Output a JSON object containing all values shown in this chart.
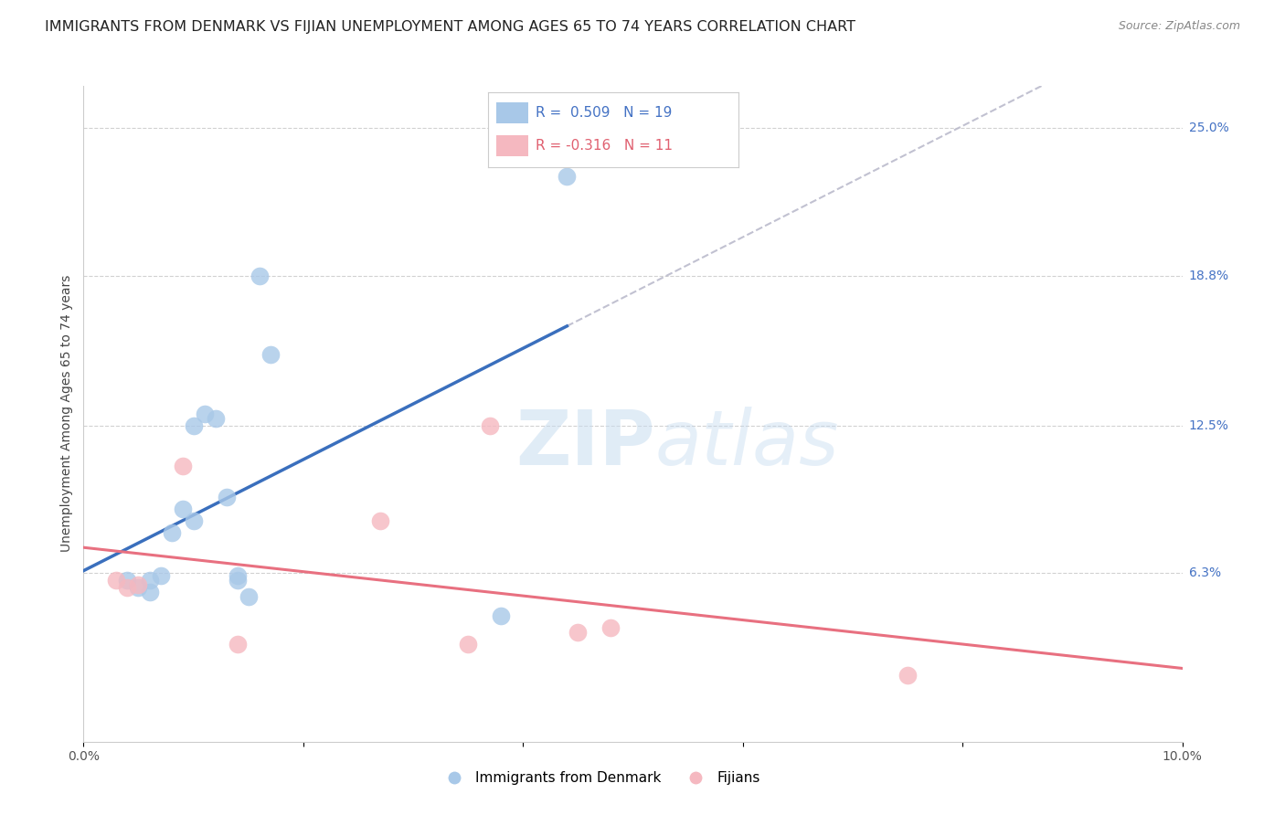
{
  "title": "IMMIGRANTS FROM DENMARK VS FIJIAN UNEMPLOYMENT AMONG AGES 65 TO 74 YEARS CORRELATION CHART",
  "source": "Source: ZipAtlas.com",
  "ylabel": "Unemployment Among Ages 65 to 74 years",
  "xlim": [
    0.0,
    0.1
  ],
  "ylim": [
    -0.008,
    0.268
  ],
  "right_yticks": [
    0.063,
    0.125,
    0.188,
    0.25
  ],
  "right_yticklabels": [
    "6.3%",
    "12.5%",
    "18.8%",
    "25.0%"
  ],
  "blue_R": 0.509,
  "blue_N": 19,
  "pink_R": -0.316,
  "pink_N": 11,
  "blue_dot_color": "#a8c8e8",
  "pink_dot_color": "#f5b8c0",
  "blue_line_color": "#3a6fbd",
  "pink_line_color": "#e87080",
  "dash_color": "#bbbbcc",
  "legend_label_blue": "Immigrants from Denmark",
  "legend_label_pink": "Fijians",
  "blue_x": [
    0.004,
    0.005,
    0.006,
    0.006,
    0.007,
    0.008,
    0.009,
    0.01,
    0.01,
    0.011,
    0.012,
    0.013,
    0.014,
    0.014,
    0.015,
    0.016,
    0.017,
    0.038,
    0.044
  ],
  "blue_y": [
    0.06,
    0.057,
    0.055,
    0.06,
    0.062,
    0.08,
    0.09,
    0.085,
    0.125,
    0.13,
    0.128,
    0.095,
    0.06,
    0.062,
    0.053,
    0.188,
    0.155,
    0.045,
    0.23
  ],
  "pink_x": [
    0.003,
    0.004,
    0.005,
    0.009,
    0.014,
    0.027,
    0.035,
    0.037,
    0.045,
    0.048,
    0.075
  ],
  "pink_y": [
    0.06,
    0.057,
    0.058,
    0.108,
    0.033,
    0.085,
    0.033,
    0.125,
    0.038,
    0.04,
    0.02
  ],
  "bg_color": "#ffffff",
  "grid_color": "#cccccc",
  "title_fontsize": 11.5,
  "axis_label_fontsize": 10,
  "tick_fontsize": 10,
  "right_tick_color": "#4472c4",
  "legend_R_blue_color": "#4472c4",
  "legend_R_pink_color": "#e06070"
}
